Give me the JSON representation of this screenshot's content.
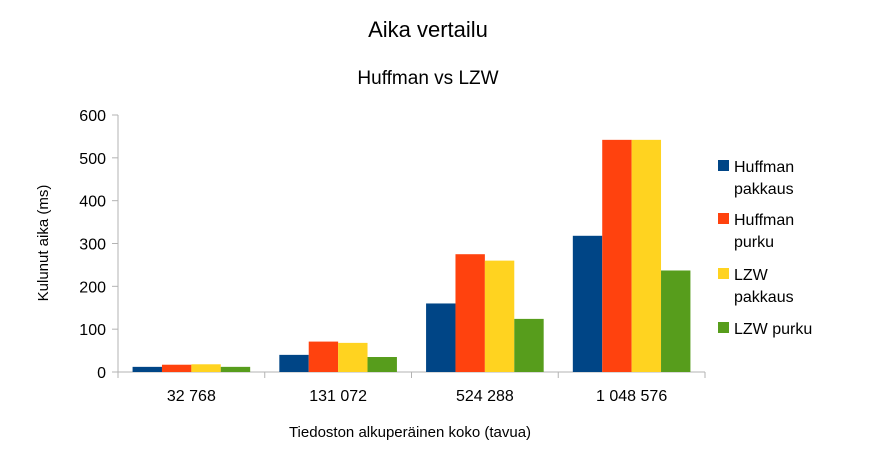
{
  "chart_data": {
    "type": "bar",
    "title": "Aika vertailu",
    "subtitle": "Huffman vs LZW",
    "xlabel": "Tiedoston alkuperäinen koko (tavua)",
    "ylabel": "Kulunut aika (ms)",
    "ylim": [
      0,
      600
    ],
    "yticks": [
      "0",
      "100",
      "200",
      "300",
      "400",
      "500",
      "600"
    ],
    "grid": false,
    "legend_position": "right",
    "categories": [
      "32 768",
      "131 072",
      "524 288",
      "1 048 576"
    ],
    "series": [
      {
        "name": "Huffman pakkaus",
        "legend_lines": [
          "Huffman",
          "pakkaus"
        ],
        "color": "#004586",
        "values": [
          12,
          40,
          160,
          318
        ]
      },
      {
        "name": "Huffman purku",
        "legend_lines": [
          "Huffman",
          "purku"
        ],
        "color": "#ff420e",
        "values": [
          17,
          71,
          275,
          542
        ]
      },
      {
        "name": "LZW pakkaus",
        "legend_lines": [
          "LZW",
          "pakkaus"
        ],
        "color": "#ffd320",
        "values": [
          18,
          68,
          260,
          542
        ]
      },
      {
        "name": "LZW purku",
        "legend_lines": [
          "LZW purku"
        ],
        "color": "#579d1c",
        "values": [
          12,
          35,
          124,
          237
        ]
      }
    ]
  }
}
